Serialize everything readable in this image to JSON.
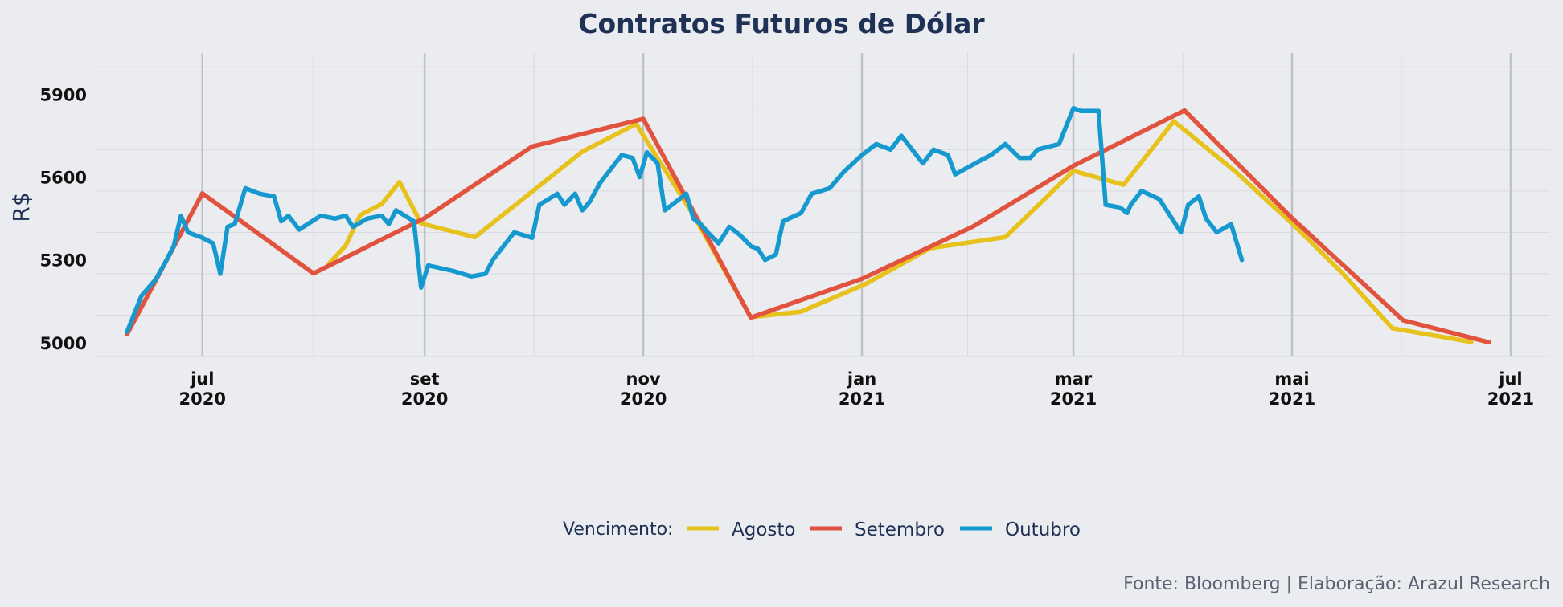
{
  "chart_data": {
    "type": "line",
    "title": "Contratos Futuros de Dólar",
    "ylabel": "R$",
    "xlabel": "",
    "ylim": [
      4950,
      6050
    ],
    "xlim": [
      "2020-06-01",
      "2021-07-12"
    ],
    "y_ticks": [
      5000,
      5300,
      5600,
      5900
    ],
    "x_ticks": [
      {
        "date": "2020-07-01",
        "month": "jul",
        "year": "2020"
      },
      {
        "date": "2020-09-01",
        "month": "set",
        "year": "2020"
      },
      {
        "date": "2020-11-01",
        "month": "nov",
        "year": "2020"
      },
      {
        "date": "2021-01-01",
        "month": "jan",
        "year": "2021"
      },
      {
        "date": "2021-03-01",
        "month": "mar",
        "year": "2021"
      },
      {
        "date": "2021-05-01",
        "month": "mai",
        "year": "2021"
      },
      {
        "date": "2021-07-01",
        "month": "jul",
        "year": "2021"
      }
    ],
    "grid": true,
    "legend_position": "bottom",
    "legend_title": "Vencimento:",
    "series": [
      {
        "name": "Agosto",
        "color": "#E8C21C",
        "start": "2020-08-05",
        "points": [
          [
            "2020-08-05",
            5300
          ],
          [
            "2020-08-10",
            5370
          ],
          [
            "2020-08-14",
            5480
          ],
          [
            "2020-08-20",
            5520
          ],
          [
            "2020-08-25",
            5600
          ],
          [
            "2020-08-31",
            5450
          ],
          [
            "2020-09-15",
            5400
          ],
          [
            "2020-10-15",
            5710
          ],
          [
            "2020-10-30",
            5810
          ],
          [
            "2020-11-15",
            5480
          ],
          [
            "2020-12-01",
            5110
          ],
          [
            "2020-12-15",
            5130
          ],
          [
            "2021-01-02",
            5230
          ],
          [
            "2021-01-20",
            5360
          ],
          [
            "2021-02-10",
            5400
          ],
          [
            "2021-03-01",
            5640
          ],
          [
            "2021-03-15",
            5590
          ],
          [
            "2021-03-29",
            5820
          ],
          [
            "2021-04-15",
            5640
          ],
          [
            "2021-05-01",
            5450
          ],
          [
            "2021-05-15",
            5270
          ],
          [
            "2021-05-29",
            5070
          ],
          [
            "2021-06-20",
            5020
          ]
        ]
      },
      {
        "name": "Setembro",
        "color": "#E2533F",
        "start": "2020-06-10",
        "points": [
          [
            "2020-06-10",
            5040
          ],
          [
            "2020-07-01",
            5550
          ],
          [
            "2020-08-01",
            5260
          ],
          [
            "2020-09-01",
            5460
          ],
          [
            "2020-10-01",
            5720
          ],
          [
            "2020-11-01",
            5820
          ],
          [
            "2020-12-01",
            5100
          ],
          [
            "2021-01-01",
            5240
          ],
          [
            "2021-02-01",
            5430
          ],
          [
            "2021-03-01",
            5650
          ],
          [
            "2021-04-01",
            5850
          ],
          [
            "2021-05-01",
            5460
          ],
          [
            "2021-06-01",
            5090
          ],
          [
            "2021-06-25",
            5010
          ]
        ]
      },
      {
        "name": "Outubro",
        "color": "#1599CF",
        "start": "2020-06-10",
        "points": [
          [
            "2020-06-10",
            5040
          ],
          [
            "2020-06-14",
            5170
          ],
          [
            "2020-06-18",
            5230
          ],
          [
            "2020-06-21",
            5300
          ],
          [
            "2020-06-23",
            5350
          ],
          [
            "2020-06-25",
            5460
          ],
          [
            "2020-06-27",
            5400
          ],
          [
            "2020-07-01",
            5380
          ],
          [
            "2020-07-04",
            5360
          ],
          [
            "2020-07-06",
            5250
          ],
          [
            "2020-07-08",
            5420
          ],
          [
            "2020-07-10",
            5430
          ],
          [
            "2020-07-13",
            5560
          ],
          [
            "2020-07-17",
            5540
          ],
          [
            "2020-07-21",
            5530
          ],
          [
            "2020-07-23",
            5440
          ],
          [
            "2020-07-25",
            5460
          ],
          [
            "2020-07-28",
            5410
          ],
          [
            "2020-08-03",
            5460
          ],
          [
            "2020-08-07",
            5450
          ],
          [
            "2020-08-10",
            5460
          ],
          [
            "2020-08-12",
            5420
          ],
          [
            "2020-08-16",
            5450
          ],
          [
            "2020-08-20",
            5460
          ],
          [
            "2020-08-22",
            5430
          ],
          [
            "2020-08-24",
            5480
          ],
          [
            "2020-08-29",
            5440
          ],
          [
            "2020-08-31",
            5200
          ],
          [
            "2020-09-02",
            5280
          ],
          [
            "2020-09-09",
            5260
          ],
          [
            "2020-09-14",
            5240
          ],
          [
            "2020-09-18",
            5250
          ],
          [
            "2020-09-20",
            5300
          ],
          [
            "2020-09-26",
            5400
          ],
          [
            "2020-10-01",
            5380
          ],
          [
            "2020-10-03",
            5500
          ],
          [
            "2020-10-08",
            5540
          ],
          [
            "2020-10-10",
            5500
          ],
          [
            "2020-10-13",
            5540
          ],
          [
            "2020-10-15",
            5480
          ],
          [
            "2020-10-17",
            5510
          ],
          [
            "2020-10-20",
            5580
          ],
          [
            "2020-10-26",
            5680
          ],
          [
            "2020-10-29",
            5670
          ],
          [
            "2020-10-31",
            5600
          ],
          [
            "2020-11-02",
            5690
          ],
          [
            "2020-11-05",
            5650
          ],
          [
            "2020-11-07",
            5480
          ],
          [
            "2020-11-13",
            5540
          ],
          [
            "2020-11-15",
            5450
          ],
          [
            "2020-11-17",
            5430
          ],
          [
            "2020-11-19",
            5400
          ],
          [
            "2020-11-22",
            5360
          ],
          [
            "2020-11-25",
            5420
          ],
          [
            "2020-11-28",
            5390
          ],
          [
            "2020-12-01",
            5350
          ],
          [
            "2020-12-03",
            5340
          ],
          [
            "2020-12-05",
            5300
          ],
          [
            "2020-12-08",
            5320
          ],
          [
            "2020-12-10",
            5440
          ],
          [
            "2020-12-15",
            5470
          ],
          [
            "2020-12-18",
            5540
          ],
          [
            "2020-12-23",
            5560
          ],
          [
            "2020-12-27",
            5620
          ],
          [
            "2021-01-01",
            5680
          ],
          [
            "2021-01-05",
            5720
          ],
          [
            "2021-01-09",
            5700
          ],
          [
            "2021-01-12",
            5750
          ],
          [
            "2021-01-15",
            5700
          ],
          [
            "2021-01-18",
            5650
          ],
          [
            "2021-01-21",
            5700
          ],
          [
            "2021-01-25",
            5680
          ],
          [
            "2021-01-27",
            5610
          ],
          [
            "2021-02-03",
            5660
          ],
          [
            "2021-02-06",
            5680
          ],
          [
            "2021-02-10",
            5720
          ],
          [
            "2021-02-14",
            5670
          ],
          [
            "2021-02-17",
            5670
          ],
          [
            "2021-02-19",
            5700
          ],
          [
            "2021-02-22",
            5710
          ],
          [
            "2021-02-25",
            5720
          ],
          [
            "2021-03-01",
            5850
          ],
          [
            "2021-03-03",
            5840
          ],
          [
            "2021-03-05",
            5840
          ],
          [
            "2021-03-08",
            5840
          ],
          [
            "2021-03-10",
            5500
          ],
          [
            "2021-03-14",
            5490
          ],
          [
            "2021-03-16",
            5470
          ],
          [
            "2021-03-17",
            5500
          ],
          [
            "2021-03-20",
            5550
          ],
          [
            "2021-03-25",
            5520
          ],
          [
            "2021-03-29",
            5440
          ],
          [
            "2021-03-31",
            5400
          ],
          [
            "2021-04-02",
            5500
          ],
          [
            "2021-04-05",
            5530
          ],
          [
            "2021-04-07",
            5450
          ],
          [
            "2021-04-10",
            5400
          ],
          [
            "2021-04-14",
            5430
          ],
          [
            "2021-04-17",
            5300
          ]
        ]
      }
    ]
  },
  "caption": "Fonte: Bloomberg | Elaboração: Arazul Research"
}
